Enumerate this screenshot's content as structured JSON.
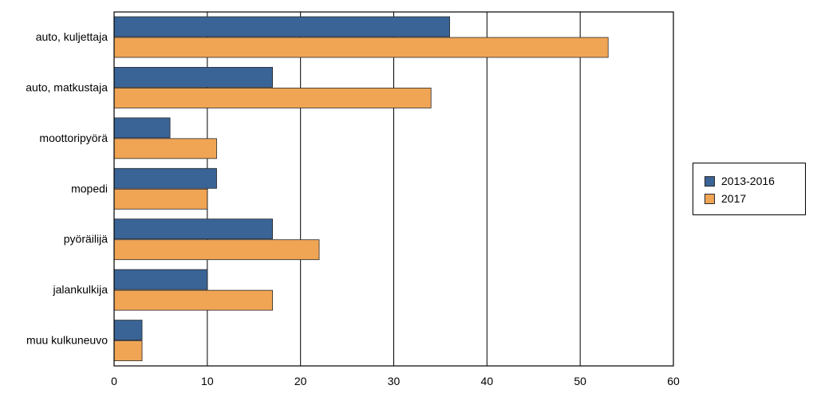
{
  "chart_data": {
    "type": "bar",
    "orientation": "horizontal",
    "categories": [
      "auto, kuljettaja",
      "auto, matkustaja",
      "moottoripyörä",
      "mopedi",
      "pyöräilijä",
      "jalankulkija",
      "muu kulkuneuvo"
    ],
    "series": [
      {
        "name": "2013-2016",
        "color": "#3a6496",
        "values": [
          36,
          17,
          6,
          11,
          17,
          10,
          3
        ]
      },
      {
        "name": "2017",
        "color": "#f0a555",
        "values": [
          53,
          34,
          11,
          10,
          22,
          17,
          3
        ]
      }
    ],
    "xlim": [
      0,
      60
    ],
    "xticks": [
      "0",
      "10",
      "20",
      "30",
      "40",
      "50",
      "60"
    ],
    "title": "",
    "xlabel": "",
    "ylabel": "",
    "grid": "vertical",
    "legend_position": "right"
  }
}
